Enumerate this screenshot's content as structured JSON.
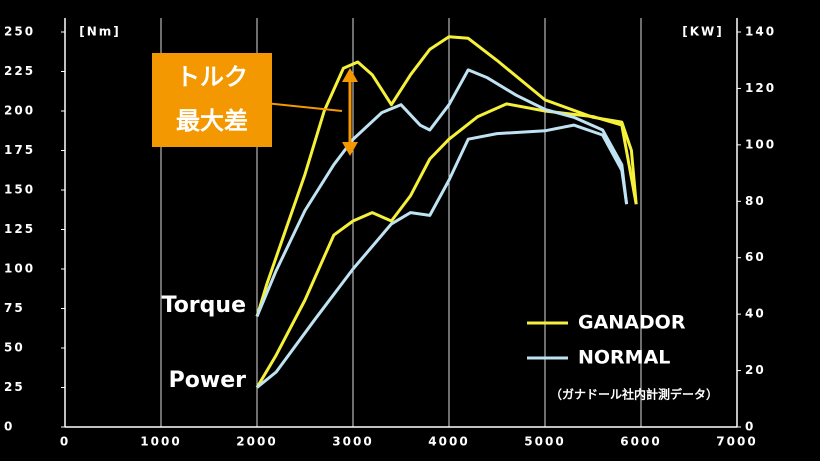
{
  "chart_data": {
    "type": "line",
    "ylabel": "[Nm]",
    "y2label": "[KW]",
    "xlim": [
      0,
      7000
    ],
    "xticks": [
      0,
      1000,
      2000,
      3000,
      4000,
      5000,
      6000,
      7000
    ],
    "ylim": [
      0,
      250
    ],
    "yticks": [
      0,
      25,
      50,
      75,
      100,
      125,
      150,
      175,
      200,
      225,
      250
    ],
    "y2lim": [
      0,
      140
    ],
    "y2ticks": [
      0,
      20,
      40,
      60,
      80,
      100,
      120,
      140
    ],
    "grid": true,
    "curve_labels": {
      "torque": "Torque",
      "power": "Power"
    },
    "annotation": {
      "lines": [
        "トルク",
        "最大差"
      ],
      "color": "#f39800"
    },
    "note": "（ガナドール社内計測データ）",
    "series": [
      {
        "name": "GANADOR",
        "color": "#f5f03a",
        "torque": {
          "x": [
            2000,
            2100,
            2300,
            2500,
            2700,
            2900,
            3050,
            3200,
            3400,
            3600,
            3800,
            4000,
            4200,
            4500,
            5000,
            5500,
            5800,
            5900,
            5950
          ],
          "values": [
            70,
            90,
            125,
            160,
            200,
            227,
            231,
            223,
            204,
            223,
            239,
            247,
            246,
            232,
            207,
            196,
            193,
            175,
            141
          ]
        },
        "power": {
          "axis": "y2",
          "x": [
            2000,
            2200,
            2500,
            2800,
            3000,
            3200,
            3400,
            3600,
            3800,
            4000,
            4300,
            4600,
            5000,
            5500,
            5800,
            5950
          ],
          "values": [
            14,
            25.5,
            45,
            68,
            73,
            76,
            73,
            82,
            95,
            102,
            110,
            114.5,
            112,
            110,
            107,
            79
          ]
        }
      },
      {
        "name": "NORMAL",
        "color": "#bfe3f2",
        "torque": {
          "x": [
            2000,
            2200,
            2500,
            2800,
            3000,
            3300,
            3500,
            3700,
            3800,
            4000,
            4200,
            4400,
            4700,
            5000,
            5300,
            5600,
            5800,
            5850
          ],
          "values": [
            70,
            99,
            137,
            166,
            182,
            199,
            204,
            191,
            188,
            204,
            226,
            221,
            210,
            201,
            196,
            188,
            166,
            141
          ]
        },
        "power": {
          "axis": "y2",
          "x": [
            2000,
            2200,
            2600,
            3000,
            3400,
            3600,
            3800,
            4000,
            4200,
            4500,
            5000,
            5300,
            5600,
            5800,
            5850
          ],
          "values": [
            14,
            19.5,
            38,
            56,
            72,
            76,
            75,
            87.5,
            102,
            104,
            105,
            107,
            103.5,
            91,
            79
          ]
        }
      }
    ]
  }
}
